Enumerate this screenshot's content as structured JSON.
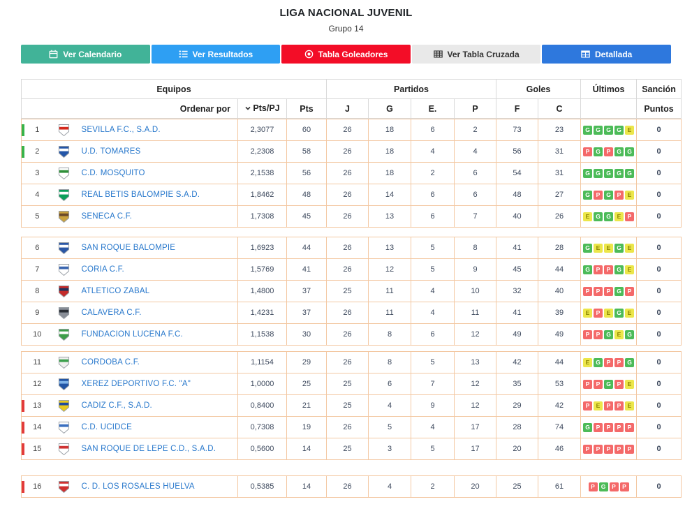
{
  "header": {
    "title": "LIGA NACIONAL JUVENIL",
    "subtitle": "Grupo 14"
  },
  "toolbar": {
    "buttons": [
      {
        "label": "Ver Calendario",
        "icon": "calendar-icon",
        "bg": "#41b398",
        "fg": "#ffffff"
      },
      {
        "label": "Ver Resultados",
        "icon": "list-icon",
        "bg": "#2e9ff3",
        "fg": "#ffffff"
      },
      {
        "label": "Tabla Goleadores",
        "icon": "target-icon",
        "bg": "#f30d27",
        "fg": "#ffffff"
      },
      {
        "label": "Ver Tabla Cruzada",
        "icon": "table-icon",
        "bg": "#e9e9e9",
        "fg": "#333333"
      },
      {
        "label": "Detallada",
        "icon": "detail-icon",
        "bg": "#2e78dd",
        "fg": "#ffffff"
      }
    ]
  },
  "legend_colors": {
    "win": "#4cbb58",
    "draw": "#ece64a",
    "loss": "#f46969",
    "promotion_marker": "#37b34a",
    "relegation_marker": "#e23b3b"
  },
  "table": {
    "group_headers": {
      "equipos": "Equipos",
      "partidos": "Partidos",
      "goles": "Goles",
      "ultimos": "Últimos",
      "sancion": "Sanción"
    },
    "sub_headers": {
      "ordenar": "Ordenar por",
      "ptspj": "Pts/PJ",
      "pts": "Pts",
      "j": "J",
      "g": "G",
      "e": "E.",
      "p": "P",
      "f": "F",
      "c": "C",
      "puntos": "Puntos"
    },
    "rows": [
      {
        "group": 1,
        "pos": 1,
        "team": "SEVILLA F.C., S.A.D.",
        "pts_pj": "2,3077",
        "pts": "60",
        "j": "26",
        "g": "18",
        "e": "6",
        "p": "2",
        "f": "73",
        "c": "23",
        "last5": [
          "G",
          "G",
          "G",
          "G",
          "E"
        ],
        "sancion": "0",
        "marker": "up",
        "badge": {
          "primary": "#ffffff",
          "secondary": "#d4281c"
        }
      },
      {
        "group": 1,
        "pos": 2,
        "team": "U.D. TOMARES",
        "pts_pj": "2,2308",
        "pts": "58",
        "j": "26",
        "g": "18",
        "e": "4",
        "p": "4",
        "f": "56",
        "c": "31",
        "last5": [
          "P",
          "G",
          "P",
          "G",
          "G"
        ],
        "sancion": "0",
        "marker": "up",
        "badge": {
          "primary": "#2456a8",
          "secondary": "#ffffff"
        }
      },
      {
        "group": 1,
        "pos": 3,
        "team": "C.D. MOSQUITO",
        "pts_pj": "2,1538",
        "pts": "56",
        "j": "26",
        "g": "18",
        "e": "2",
        "p": "6",
        "f": "54",
        "c": "31",
        "last5": [
          "G",
          "G",
          "G",
          "G",
          "G"
        ],
        "sancion": "0",
        "marker": null,
        "badge": {
          "primary": "#ffffff",
          "secondary": "#2f8f3a"
        }
      },
      {
        "group": 1,
        "pos": 4,
        "team": "REAL BETIS BALOMPIE S.A.D.",
        "pts_pj": "1,8462",
        "pts": "48",
        "j": "26",
        "g": "14",
        "e": "6",
        "p": "6",
        "f": "48",
        "c": "27",
        "last5": [
          "G",
          "P",
          "G",
          "P",
          "E"
        ],
        "sancion": "0",
        "marker": null,
        "badge": {
          "primary": "#0aa05a",
          "secondary": "#ffffff"
        }
      },
      {
        "group": 1,
        "pos": 5,
        "team": "SENECA C.F.",
        "pts_pj": "1,7308",
        "pts": "45",
        "j": "26",
        "g": "13",
        "e": "6",
        "p": "7",
        "f": "40",
        "c": "26",
        "last5": [
          "E",
          "G",
          "G",
          "E",
          "P"
        ],
        "sancion": "0",
        "marker": null,
        "badge": {
          "primary": "#c9a23f",
          "secondary": "#6b4a2a"
        }
      },
      {
        "group": 2,
        "pos": 6,
        "team": "SAN ROQUE BALOMPIE",
        "pts_pj": "1,6923",
        "pts": "44",
        "j": "26",
        "g": "13",
        "e": "5",
        "p": "8",
        "f": "41",
        "c": "28",
        "last5": [
          "G",
          "E",
          "E",
          "G",
          "E"
        ],
        "sancion": "0",
        "marker": null,
        "badge": {
          "primary": "#2b57a5",
          "secondary": "#ffffff"
        }
      },
      {
        "group": 2,
        "pos": 7,
        "team": "CORIA C.F.",
        "pts_pj": "1,5769",
        "pts": "41",
        "j": "26",
        "g": "12",
        "e": "5",
        "p": "9",
        "f": "45",
        "c": "44",
        "last5": [
          "G",
          "P",
          "P",
          "G",
          "E"
        ],
        "sancion": "0",
        "marker": null,
        "badge": {
          "primary": "#ffffff",
          "secondary": "#3a66b0"
        }
      },
      {
        "group": 2,
        "pos": 8,
        "team": "ATLETICO ZABAL",
        "pts_pj": "1,4800",
        "pts": "37",
        "j": "25",
        "g": "11",
        "e": "4",
        "p": "10",
        "f": "32",
        "c": "40",
        "last5": [
          "P",
          "P",
          "P",
          "G",
          "P"
        ],
        "sancion": "0",
        "marker": null,
        "badge": {
          "primary": "#c32b2b",
          "secondary": "#20335c"
        }
      },
      {
        "group": 2,
        "pos": 9,
        "team": "CALAVERA C.F.",
        "pts_pj": "1,4231",
        "pts": "37",
        "j": "26",
        "g": "11",
        "e": "4",
        "p": "11",
        "f": "41",
        "c": "39",
        "last5": [
          "E",
          "P",
          "E",
          "G",
          "E"
        ],
        "sancion": "0",
        "marker": null,
        "badge": {
          "primary": "#8a8f98",
          "secondary": "#2b2f36"
        }
      },
      {
        "group": 2,
        "pos": 10,
        "team": "FUNDACION LUCENA F.C.",
        "pts_pj": "1,1538",
        "pts": "30",
        "j": "26",
        "g": "8",
        "e": "6",
        "p": "12",
        "f": "49",
        "c": "49",
        "last5": [
          "P",
          "P",
          "G",
          "E",
          "G"
        ],
        "sancion": "0",
        "marker": null,
        "badge": {
          "primary": "#3d9e4a",
          "secondary": "#ffffff"
        }
      },
      {
        "group": 3,
        "pos": 11,
        "team": "CORDOBA C.F.",
        "pts_pj": "1,1154",
        "pts": "29",
        "j": "26",
        "g": "8",
        "e": "5",
        "p": "13",
        "f": "42",
        "c": "44",
        "last5": [
          "E",
          "G",
          "P",
          "P",
          "G"
        ],
        "sancion": "0",
        "marker": null,
        "badge": {
          "primary": "#f0f0f0",
          "secondary": "#3da04e"
        }
      },
      {
        "group": 3,
        "pos": 12,
        "team": "XEREZ DEPORTIVO F.C. \"A\"",
        "pts_pj": "1,0000",
        "pts": "25",
        "j": "25",
        "g": "6",
        "e": "7",
        "p": "12",
        "f": "35",
        "c": "53",
        "last5": [
          "P",
          "P",
          "G",
          "P",
          "E"
        ],
        "sancion": "0",
        "marker": null,
        "badge": {
          "primary": "#2255a4",
          "secondary": "#7fb3e8"
        }
      },
      {
        "group": 3,
        "pos": 13,
        "team": "CADIZ C.F., S.A.D.",
        "pts_pj": "0,8400",
        "pts": "21",
        "j": "25",
        "g": "4",
        "e": "9",
        "p": "12",
        "f": "29",
        "c": "42",
        "last5": [
          "P",
          "E",
          "P",
          "P",
          "E"
        ],
        "sancion": "0",
        "marker": "down",
        "badge": {
          "primary": "#e8c91c",
          "secondary": "#204a9e"
        }
      },
      {
        "group": 3,
        "pos": 14,
        "team": "C.D. UCIDCE",
        "pts_pj": "0,7308",
        "pts": "19",
        "j": "26",
        "g": "5",
        "e": "4",
        "p": "17",
        "f": "28",
        "c": "74",
        "last5": [
          "G",
          "P",
          "P",
          "P",
          "P"
        ],
        "sancion": "0",
        "marker": "down",
        "badge": {
          "primary": "#ffffff",
          "secondary": "#3a6fc0"
        }
      },
      {
        "group": 3,
        "pos": 15,
        "team": "SAN ROQUE DE LEPE C.D., S.A.D.",
        "pts_pj": "0,5600",
        "pts": "14",
        "j": "25",
        "g": "3",
        "e": "5",
        "p": "17",
        "f": "20",
        "c": "46",
        "last5": [
          "P",
          "P",
          "P",
          "P",
          "P"
        ],
        "sancion": "0",
        "marker": "down",
        "badge": {
          "primary": "#ffffff",
          "secondary": "#cf3333"
        }
      },
      {
        "group": 4,
        "pos": 16,
        "team": "C. D. LOS ROSALES HUELVA",
        "pts_pj": "0,5385",
        "pts": "14",
        "j": "26",
        "g": "4",
        "e": "2",
        "p": "20",
        "f": "25",
        "c": "61",
        "last5": [
          "P",
          "G",
          "P",
          "P"
        ],
        "sancion": "0",
        "marker": "down",
        "badge": {
          "primary": "#d03030",
          "secondary": "#ffffff"
        }
      }
    ]
  }
}
